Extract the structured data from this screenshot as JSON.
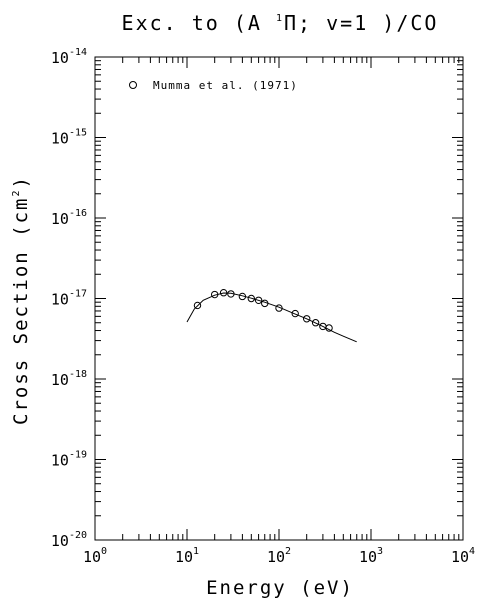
{
  "chart_data": {
    "type": "scatter",
    "title": "Exc. to (A ¹Π; v=1 )/CO",
    "title_parts": {
      "pre": "Exc. to (A ",
      "sup": "1",
      "post": "Π; v=1 )/CO"
    },
    "xlabel": "Energy (eV)",
    "ylabel_base": "Cross Section (cm",
    "ylabel_sup": "2",
    "ylabel_tail": ")",
    "x_scale": "log",
    "y_scale": "log",
    "xlim": [
      1,
      10000
    ],
    "ylim": [
      1e-20,
      1e-14
    ],
    "x_ticks": [
      {
        "base": "10",
        "exp": "0",
        "value": 1
      },
      {
        "base": "10",
        "exp": "1",
        "value": 10
      },
      {
        "base": "10",
        "exp": "2",
        "value": 100
      },
      {
        "base": "10",
        "exp": "3",
        "value": 1000
      },
      {
        "base": "10",
        "exp": "4",
        "value": 10000
      }
    ],
    "y_ticks": [
      {
        "base": "10",
        "exp": "-20",
        "value": 1e-20
      },
      {
        "base": "10",
        "exp": "-19",
        "value": 1e-19
      },
      {
        "base": "10",
        "exp": "-18",
        "value": 1e-18
      },
      {
        "base": "10",
        "exp": "-17",
        "value": 1e-17
      },
      {
        "base": "10",
        "exp": "-16",
        "value": 1e-16
      },
      {
        "base": "10",
        "exp": "-15",
        "value": 1e-15
      },
      {
        "base": "10",
        "exp": "-14",
        "value": 1e-14
      }
    ],
    "grid": false,
    "legend_position": "top-left",
    "series": [
      {
        "name": "Mumma et al. (1971)",
        "marker": "open-circle",
        "points": [
          {
            "x": 13,
            "y": 8.2e-18
          },
          {
            "x": 20,
            "y": 1.12e-17
          },
          {
            "x": 25,
            "y": 1.18e-17
          },
          {
            "x": 30,
            "y": 1.14e-17
          },
          {
            "x": 40,
            "y": 1.06e-17
          },
          {
            "x": 50,
            "y": 1e-17
          },
          {
            "x": 60,
            "y": 9.5e-18
          },
          {
            "x": 70,
            "y": 8.7e-18
          },
          {
            "x": 100,
            "y": 7.6e-18
          },
          {
            "x": 150,
            "y": 6.5e-18
          },
          {
            "x": 200,
            "y": 5.6e-18
          },
          {
            "x": 250,
            "y": 5e-18
          },
          {
            "x": 300,
            "y": 4.5e-18
          },
          {
            "x": 350,
            "y": 4.3e-18
          }
        ]
      },
      {
        "name": "",
        "type": "line",
        "points": [
          {
            "x": 10,
            "y": 5.1e-18
          },
          {
            "x": 12,
            "y": 7.4e-18
          },
          {
            "x": 15,
            "y": 9.5e-18
          },
          {
            "x": 20,
            "y": 1.1e-17
          },
          {
            "x": 25,
            "y": 1.17e-17
          },
          {
            "x": 30,
            "y": 1.16e-17
          },
          {
            "x": 40,
            "y": 1.08e-17
          },
          {
            "x": 50,
            "y": 1.01e-17
          },
          {
            "x": 70,
            "y": 9e-18
          },
          {
            "x": 100,
            "y": 7.8e-18
          },
          {
            "x": 150,
            "y": 6.4e-18
          },
          {
            "x": 200,
            "y": 5.6e-18
          },
          {
            "x": 300,
            "y": 4.5e-18
          },
          {
            "x": 400,
            "y": 3.8e-18
          },
          {
            "x": 500,
            "y": 3.4e-18
          },
          {
            "x": 700,
            "y": 2.9e-18
          }
        ]
      }
    ]
  }
}
